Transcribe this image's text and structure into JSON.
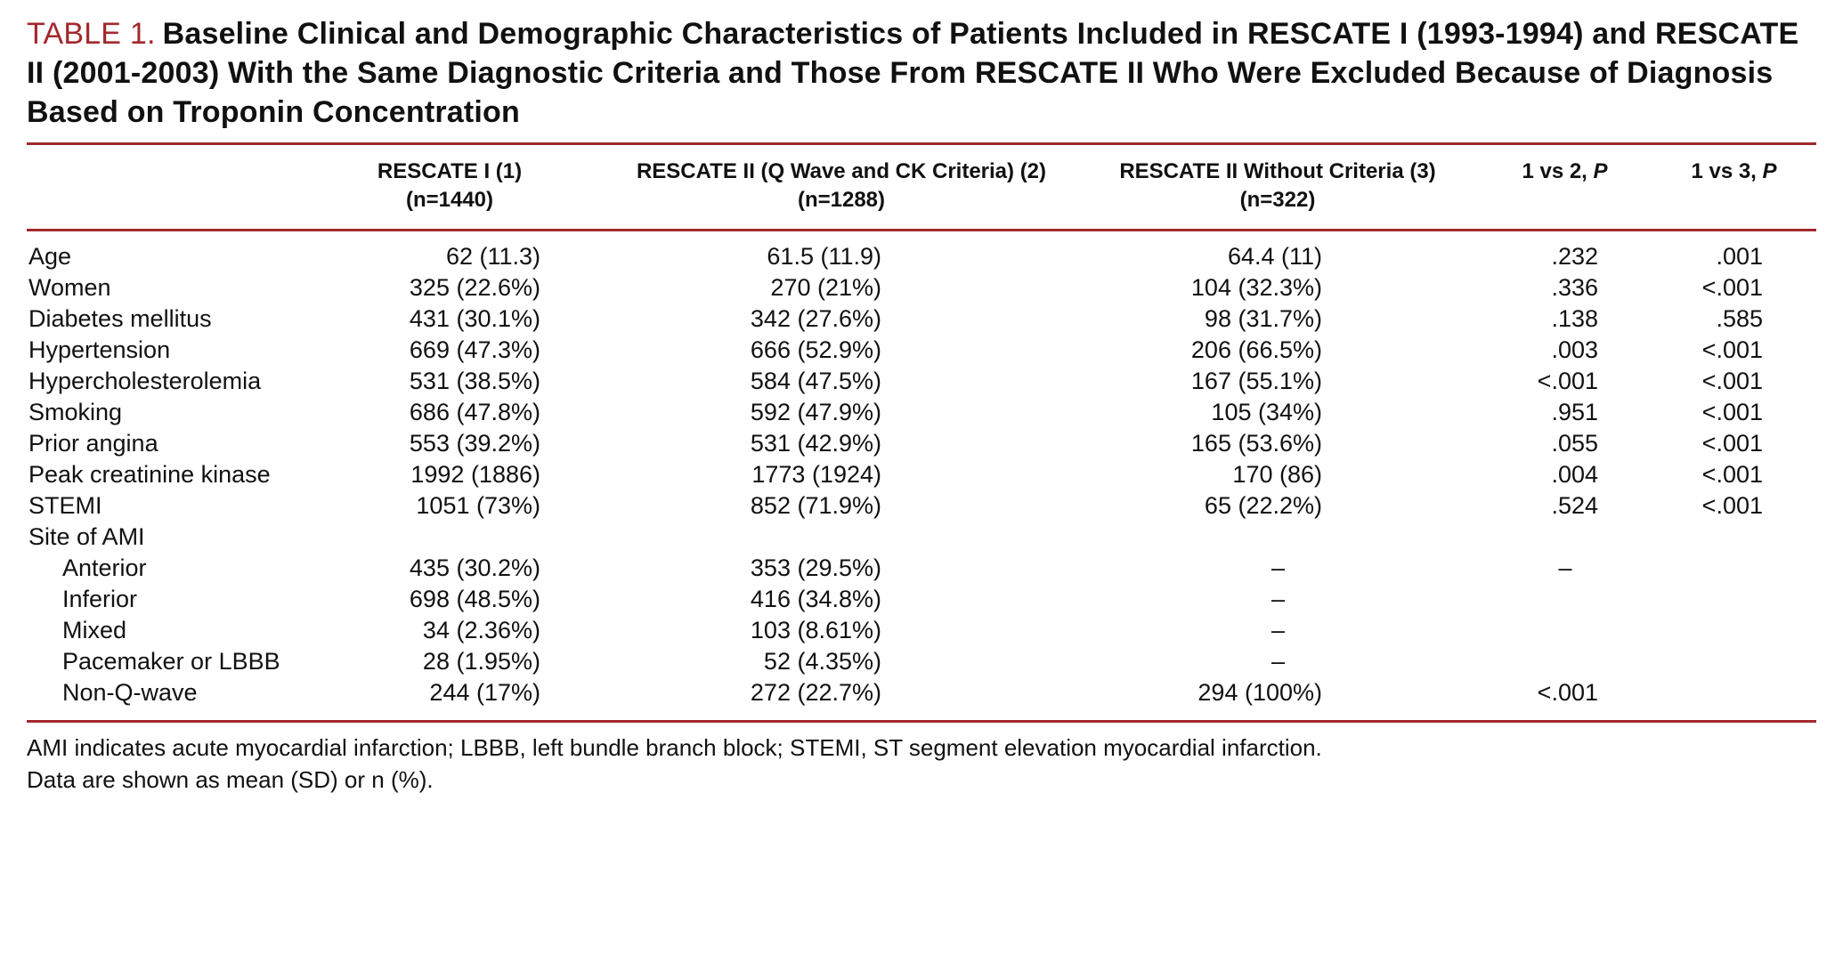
{
  "colors": {
    "accent": "#A3282F"
  },
  "title": {
    "label": "TABLE 1.",
    "text": "Baseline Clinical and Demographic Characteristics of Patients Included in RESCATE I (1993-1994) and RESCATE II (2001-2003) With the Same Diagnostic Criteria and Those From RESCATE II Who Were Excluded Because of Diagnosis Based on Troponin Concentration"
  },
  "table": {
    "header": {
      "col1_line1": "RESCATE I (1)",
      "col1_line2": "(n=1440)",
      "col2_line1": "RESCATE II (Q Wave and CK Criteria) (2)",
      "col2_line2": "(n=1288)",
      "col3_line1": "RESCATE II Without Criteria (3)",
      "col3_line2": "(n=322)",
      "p12_prefix": "1 vs 2, ",
      "p12_italic": "P",
      "p13_prefix": "1 vs 3, ",
      "p13_italic": "P"
    },
    "rows": [
      {
        "label": "Age",
        "c1": "62 (11.3)",
        "c2": "61.5 (11.9)",
        "c3": "64.4 (11)",
        "p12": ".232",
        "p13": ".001"
      },
      {
        "label": "Women",
        "c1": "325 (22.6%)",
        "c2": "270 (21%)",
        "c3": "104 (32.3%)",
        "p12": ".336",
        "p13": "<.001"
      },
      {
        "label": "Diabetes mellitus",
        "c1": "431 (30.1%)",
        "c2": "342 (27.6%)",
        "c3": "98 (31.7%)",
        "p12": ".138",
        "p13": ".585"
      },
      {
        "label": "Hypertension",
        "c1": "669 (47.3%)",
        "c2": "666 (52.9%)",
        "c3": "206 (66.5%)",
        "p12": ".003",
        "p13": "<.001"
      },
      {
        "label": "Hypercholesterolemia",
        "c1": "531 (38.5%)",
        "c2": "584 (47.5%)",
        "c3": "167 (55.1%)",
        "p12": "<.001",
        "p13": "<.001"
      },
      {
        "label": "Smoking",
        "c1": "686 (47.8%)",
        "c2": "592 (47.9%)",
        "c3": "105 (34%)",
        "p12": ".951",
        "p13": "<.001"
      },
      {
        "label": "Prior angina",
        "c1": "553 (39.2%)",
        "c2": "531 (42.9%)",
        "c3": "165 (53.6%)",
        "p12": ".055",
        "p13": "<.001"
      },
      {
        "label": "Peak creatinine kinase",
        "c1": "1992 (1886)",
        "c2": "1773 (1924)",
        "c3": "170 (86)",
        "p12": ".004",
        "p13": "<.001"
      },
      {
        "label": "STEMI",
        "c1": "1051 (73%)",
        "c2": "852 (71.9%)",
        "c3": "65 (22.2%)",
        "p12": ".524",
        "p13": "<.001"
      },
      {
        "label": "Site of AMI",
        "c1": "",
        "c2": "",
        "c3": "",
        "p12": "",
        "p13": ""
      },
      {
        "label": "Anterior",
        "c1": "435 (30.2%)",
        "c2": "353 (29.5%)",
        "c3": "–",
        "p12": "–",
        "p13": ""
      },
      {
        "label": "Inferior",
        "c1": "698 (48.5%)",
        "c2": "416 (34.8%)",
        "c3": "–",
        "p12": "",
        "p13": ""
      },
      {
        "label": "Mixed",
        "c1": "34 (2.36%)",
        "c2": "103 (8.61%)",
        "c3": "–",
        "p12": "",
        "p13": ""
      },
      {
        "label": "Pacemaker or LBBB",
        "c1": "28 (1.95%)",
        "c2": "52 (4.35%)",
        "c3": "–",
        "p12": "",
        "p13": ""
      },
      {
        "label": "Non-Q-wave",
        "c1": "244 (17%)",
        "c2": "272 (22.7%)",
        "c3": "294 (100%)",
        "p12": "<.001",
        "p13": ""
      }
    ]
  },
  "footnotes": [
    "AMI indicates acute myocardial infarction; LBBB, left bundle branch block; STEMI, ST segment elevation myocardial infarction.",
    "Data are shown as mean (SD) or n (%)."
  ]
}
